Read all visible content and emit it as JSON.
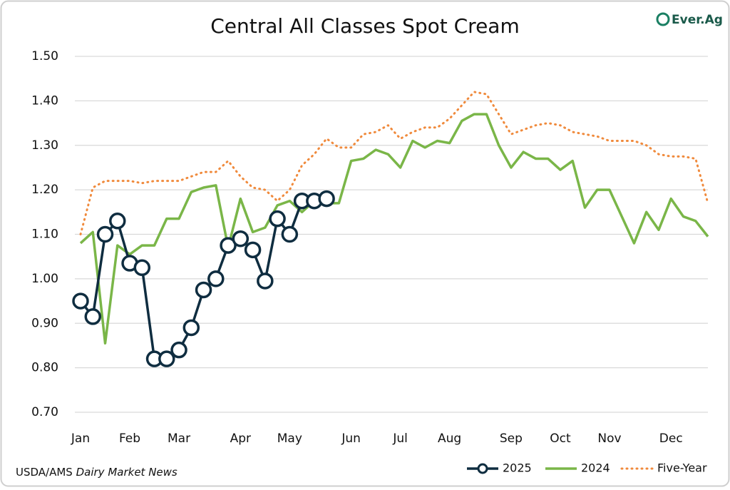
{
  "chart_data": {
    "type": "line",
    "title": "Central All Classes Spot Cream",
    "logo": "Ever.Ag",
    "source_prefix": "USDA/AMS",
    "source_italic": "Dairy Market News",
    "categories": [
      "Jan",
      null,
      null,
      null,
      "Feb",
      null,
      null,
      null,
      "Mar",
      null,
      null,
      null,
      null,
      "Apr",
      null,
      null,
      null,
      "May",
      null,
      null,
      null,
      null,
      "Jun",
      null,
      null,
      null,
      "Jul",
      null,
      null,
      null,
      "Aug",
      null,
      null,
      null,
      null,
      "Sep",
      null,
      null,
      null,
      "Oct",
      null,
      null,
      null,
      "Nov",
      null,
      null,
      null,
      null,
      "Dec",
      null,
      null,
      null
    ],
    "ylim": [
      0.7,
      1.5
    ],
    "yticks": [
      {
        "value": 0.7,
        "label": "0.70"
      },
      {
        "value": 0.8,
        "label": "0.80"
      },
      {
        "value": 0.9,
        "label": "0.90"
      },
      {
        "value": 1.0,
        "label": "1.00"
      },
      {
        "value": 1.1,
        "label": "1.10"
      },
      {
        "value": 1.2,
        "label": "1.20"
      },
      {
        "value": 1.3,
        "label": "1.30"
      },
      {
        "value": 1.4,
        "label": "1.40"
      },
      {
        "value": 1.5,
        "label": "1.50"
      }
    ],
    "grid": true,
    "legend": "bottom-right",
    "series": [
      {
        "name": "2025",
        "color": "#0f2d40",
        "style": "markers",
        "values": [
          0.95,
          0.915,
          1.1,
          1.13,
          1.035,
          1.025,
          0.82,
          0.82,
          0.84,
          0.89,
          0.975,
          1.0,
          1.075,
          1.09,
          1.065,
          0.995,
          1.135,
          1.1,
          1.175,
          1.175,
          1.18,
          null,
          null,
          null,
          null,
          null,
          null,
          null,
          null,
          null,
          null,
          null,
          null,
          null,
          null,
          null,
          null,
          null,
          null,
          null,
          null,
          null,
          null,
          null,
          null,
          null,
          null,
          null,
          null,
          null,
          null,
          null
        ]
      },
      {
        "name": "2024",
        "color": "#7ab648",
        "style": "solid",
        "values": [
          1.08,
          1.105,
          0.855,
          1.075,
          1.055,
          1.075,
          1.075,
          1.135,
          1.135,
          1.195,
          1.205,
          1.21,
          1.07,
          1.18,
          1.105,
          1.115,
          1.165,
          1.175,
          1.15,
          1.175,
          1.17,
          1.17,
          1.265,
          1.27,
          1.29,
          1.28,
          1.25,
          1.31,
          1.295,
          1.31,
          1.305,
          1.355,
          1.37,
          1.37,
          1.3,
          1.25,
          1.285,
          1.27,
          1.27,
          1.245,
          1.265,
          1.16,
          1.2,
          1.2,
          1.14,
          1.08,
          1.15,
          1.11,
          1.18,
          1.14,
          1.13,
          1.095
        ]
      },
      {
        "name": "Five-Year",
        "color": "#f08a3c",
        "style": "dotted",
        "values": [
          1.1,
          1.205,
          1.22,
          1.22,
          1.22,
          1.215,
          1.22,
          1.22,
          1.22,
          1.23,
          1.24,
          1.24,
          1.265,
          1.23,
          1.205,
          1.2,
          1.175,
          1.2,
          1.255,
          1.28,
          1.315,
          1.295,
          1.295,
          1.325,
          1.33,
          1.345,
          1.315,
          1.33,
          1.34,
          1.34,
          1.36,
          1.39,
          1.42,
          1.415,
          1.37,
          1.325,
          1.335,
          1.345,
          1.35,
          1.345,
          1.33,
          1.325,
          1.32,
          1.31,
          1.31,
          1.31,
          1.3,
          1.28,
          1.275,
          1.275,
          1.27,
          1.17
        ]
      }
    ]
  }
}
